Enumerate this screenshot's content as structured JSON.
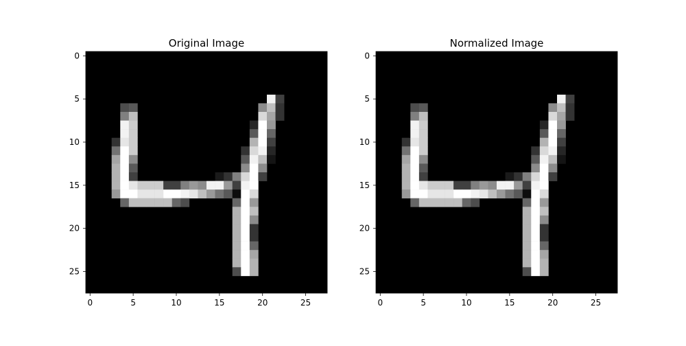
{
  "colors": {
    "background": "#ffffff",
    "axes_bg": "#000000",
    "text": "#000000"
  },
  "chart_data": [
    {
      "type": "heatmap",
      "title": "Original Image",
      "xlabel": "",
      "ylabel": "",
      "rows": 28,
      "cols": 28,
      "xlim": [
        -0.5,
        27.5
      ],
      "ylim": [
        27.5,
        -0.5
      ],
      "xticks": [
        0,
        5,
        10,
        15,
        20,
        25
      ],
      "yticks": [
        0,
        5,
        10,
        15,
        20,
        25
      ],
      "colormap": "gray",
      "vmin": 0,
      "vmax": 1,
      "grid": false,
      "pixels": [
        [
          5,
          21,
          0.95
        ],
        [
          5,
          22,
          0.25
        ],
        [
          6,
          4,
          0.3
        ],
        [
          6,
          5,
          0.35
        ],
        [
          6,
          20,
          0.55
        ],
        [
          6,
          21,
          0.75
        ],
        [
          6,
          22,
          0.2
        ],
        [
          7,
          4,
          0.5
        ],
        [
          7,
          5,
          0.75
        ],
        [
          7,
          20,
          0.85
        ],
        [
          7,
          21,
          0.65
        ],
        [
          7,
          22,
          0.2
        ],
        [
          8,
          4,
          0.95
        ],
        [
          8,
          5,
          0.8
        ],
        [
          8,
          19,
          0.15
        ],
        [
          8,
          20,
          1.0
        ],
        [
          8,
          21,
          0.6
        ],
        [
          9,
          4,
          0.95
        ],
        [
          9,
          5,
          0.8
        ],
        [
          9,
          19,
          0.35
        ],
        [
          9,
          20,
          1.0
        ],
        [
          9,
          21,
          0.4
        ],
        [
          10,
          3,
          0.2
        ],
        [
          10,
          4,
          0.9
        ],
        [
          10,
          5,
          0.8
        ],
        [
          10,
          19,
          0.7
        ],
        [
          10,
          20,
          1.0
        ],
        [
          10,
          21,
          0.25
        ],
        [
          11,
          3,
          0.45
        ],
        [
          11,
          4,
          1.0
        ],
        [
          11,
          5,
          0.8
        ],
        [
          11,
          18,
          0.2
        ],
        [
          11,
          19,
          0.85
        ],
        [
          11,
          20,
          0.95
        ],
        [
          11,
          21,
          0.15
        ],
        [
          12,
          3,
          0.65
        ],
        [
          12,
          4,
          1.0
        ],
        [
          12,
          5,
          0.55
        ],
        [
          12,
          18,
          0.35
        ],
        [
          12,
          19,
          0.95
        ],
        [
          12,
          20,
          0.75
        ],
        [
          12,
          21,
          0.08
        ],
        [
          13,
          3,
          0.7
        ],
        [
          13,
          4,
          1.0
        ],
        [
          13,
          5,
          0.35
        ],
        [
          13,
          18,
          0.55
        ],
        [
          13,
          19,
          1.0
        ],
        [
          13,
          20,
          0.55
        ],
        [
          14,
          3,
          0.7
        ],
        [
          14,
          4,
          1.0
        ],
        [
          14,
          5,
          0.25
        ],
        [
          14,
          15,
          0.1
        ],
        [
          14,
          16,
          0.2
        ],
        [
          14,
          17,
          0.5
        ],
        [
          14,
          18,
          0.85
        ],
        [
          14,
          19,
          1.0
        ],
        [
          14,
          20,
          0.25
        ],
        [
          15,
          3,
          0.7
        ],
        [
          15,
          4,
          1.0
        ],
        [
          15,
          5,
          0.9
        ],
        [
          15,
          6,
          0.8
        ],
        [
          15,
          7,
          0.8
        ],
        [
          15,
          8,
          0.8
        ],
        [
          15,
          9,
          0.25
        ],
        [
          15,
          10,
          0.25
        ],
        [
          15,
          11,
          0.5
        ],
        [
          15,
          12,
          0.6
        ],
        [
          15,
          13,
          0.55
        ],
        [
          15,
          14,
          0.95
        ],
        [
          15,
          15,
          0.95
        ],
        [
          15,
          16,
          0.6
        ],
        [
          15,
          17,
          0.25
        ],
        [
          15,
          18,
          0.95
        ],
        [
          15,
          19,
          1.0
        ],
        [
          16,
          3,
          0.6
        ],
        [
          16,
          4,
          1.0
        ],
        [
          16,
          5,
          1.0
        ],
        [
          16,
          6,
          0.9
        ],
        [
          16,
          7,
          0.9
        ],
        [
          16,
          8,
          0.9
        ],
        [
          16,
          9,
          1.0
        ],
        [
          16,
          10,
          1.0
        ],
        [
          16,
          11,
          0.95
        ],
        [
          16,
          12,
          0.9
        ],
        [
          16,
          13,
          0.75
        ],
        [
          16,
          14,
          0.6
        ],
        [
          16,
          15,
          0.45
        ],
        [
          16,
          16,
          0.35
        ],
        [
          16,
          17,
          0.05
        ],
        [
          16,
          18,
          1.0
        ],
        [
          16,
          19,
          0.85
        ],
        [
          17,
          4,
          0.4
        ],
        [
          17,
          5,
          0.75
        ],
        [
          17,
          6,
          0.75
        ],
        [
          17,
          7,
          0.75
        ],
        [
          17,
          8,
          0.75
        ],
        [
          17,
          9,
          0.75
        ],
        [
          17,
          10,
          0.4
        ],
        [
          17,
          11,
          0.3
        ],
        [
          17,
          17,
          0.4
        ],
        [
          17,
          18,
          1.0
        ],
        [
          17,
          19,
          0.6
        ],
        [
          18,
          17,
          0.7
        ],
        [
          18,
          18,
          1.0
        ],
        [
          18,
          19,
          0.75
        ],
        [
          19,
          17,
          0.7
        ],
        [
          19,
          18,
          1.0
        ],
        [
          19,
          19,
          0.55
        ],
        [
          20,
          17,
          0.7
        ],
        [
          20,
          18,
          1.0
        ],
        [
          20,
          19,
          0.2
        ],
        [
          21,
          17,
          0.7
        ],
        [
          21,
          18,
          1.0
        ],
        [
          21,
          19,
          0.2
        ],
        [
          22,
          17,
          0.7
        ],
        [
          22,
          18,
          1.0
        ],
        [
          22,
          19,
          0.4
        ],
        [
          23,
          17,
          0.7
        ],
        [
          23,
          18,
          1.0
        ],
        [
          23,
          19,
          0.65
        ],
        [
          24,
          17,
          0.7
        ],
        [
          24,
          18,
          1.0
        ],
        [
          24,
          19,
          0.7
        ],
        [
          25,
          17,
          0.3
        ],
        [
          25,
          18,
          1.0
        ],
        [
          25,
          19,
          0.7
        ]
      ]
    },
    {
      "type": "heatmap",
      "title": "Normalized Image",
      "xlabel": "",
      "ylabel": "",
      "rows": 28,
      "cols": 28,
      "xlim": [
        -0.5,
        27.5
      ],
      "ylim": [
        27.5,
        -0.5
      ],
      "xticks": [
        0,
        5,
        10,
        15,
        20,
        25
      ],
      "yticks": [
        0,
        5,
        10,
        15,
        20,
        25
      ],
      "colormap": "gray",
      "vmin": 0,
      "vmax": 1,
      "grid": false,
      "pixels": [
        [
          5,
          21,
          0.95
        ],
        [
          5,
          22,
          0.25
        ],
        [
          6,
          4,
          0.3
        ],
        [
          6,
          5,
          0.35
        ],
        [
          6,
          20,
          0.55
        ],
        [
          6,
          21,
          0.75
        ],
        [
          6,
          22,
          0.2
        ],
        [
          7,
          4,
          0.5
        ],
        [
          7,
          5,
          0.75
        ],
        [
          7,
          20,
          0.85
        ],
        [
          7,
          21,
          0.65
        ],
        [
          7,
          22,
          0.2
        ],
        [
          8,
          4,
          0.95
        ],
        [
          8,
          5,
          0.8
        ],
        [
          8,
          19,
          0.15
        ],
        [
          8,
          20,
          1.0
        ],
        [
          8,
          21,
          0.6
        ],
        [
          9,
          4,
          0.95
        ],
        [
          9,
          5,
          0.8
        ],
        [
          9,
          19,
          0.35
        ],
        [
          9,
          20,
          1.0
        ],
        [
          9,
          21,
          0.4
        ],
        [
          10,
          3,
          0.2
        ],
        [
          10,
          4,
          0.9
        ],
        [
          10,
          5,
          0.8
        ],
        [
          10,
          19,
          0.7
        ],
        [
          10,
          20,
          1.0
        ],
        [
          10,
          21,
          0.25
        ],
        [
          11,
          3,
          0.45
        ],
        [
          11,
          4,
          1.0
        ],
        [
          11,
          5,
          0.8
        ],
        [
          11,
          18,
          0.2
        ],
        [
          11,
          19,
          0.85
        ],
        [
          11,
          20,
          0.95
        ],
        [
          11,
          21,
          0.15
        ],
        [
          12,
          3,
          0.65
        ],
        [
          12,
          4,
          1.0
        ],
        [
          12,
          5,
          0.55
        ],
        [
          12,
          18,
          0.35
        ],
        [
          12,
          19,
          0.95
        ],
        [
          12,
          20,
          0.75
        ],
        [
          12,
          21,
          0.08
        ],
        [
          13,
          3,
          0.7
        ],
        [
          13,
          4,
          1.0
        ],
        [
          13,
          5,
          0.35
        ],
        [
          13,
          18,
          0.55
        ],
        [
          13,
          19,
          1.0
        ],
        [
          13,
          20,
          0.55
        ],
        [
          14,
          3,
          0.7
        ],
        [
          14,
          4,
          1.0
        ],
        [
          14,
          5,
          0.25
        ],
        [
          14,
          15,
          0.1
        ],
        [
          14,
          16,
          0.2
        ],
        [
          14,
          17,
          0.5
        ],
        [
          14,
          18,
          0.85
        ],
        [
          14,
          19,
          1.0
        ],
        [
          14,
          20,
          0.25
        ],
        [
          15,
          3,
          0.7
        ],
        [
          15,
          4,
          1.0
        ],
        [
          15,
          5,
          0.9
        ],
        [
          15,
          6,
          0.8
        ],
        [
          15,
          7,
          0.8
        ],
        [
          15,
          8,
          0.8
        ],
        [
          15,
          9,
          0.25
        ],
        [
          15,
          10,
          0.25
        ],
        [
          15,
          11,
          0.5
        ],
        [
          15,
          12,
          0.6
        ],
        [
          15,
          13,
          0.55
        ],
        [
          15,
          14,
          0.95
        ],
        [
          15,
          15,
          0.95
        ],
        [
          15,
          16,
          0.6
        ],
        [
          15,
          17,
          0.25
        ],
        [
          15,
          18,
          0.95
        ],
        [
          15,
          19,
          1.0
        ],
        [
          16,
          3,
          0.6
        ],
        [
          16,
          4,
          1.0
        ],
        [
          16,
          5,
          1.0
        ],
        [
          16,
          6,
          0.9
        ],
        [
          16,
          7,
          0.9
        ],
        [
          16,
          8,
          0.9
        ],
        [
          16,
          9,
          1.0
        ],
        [
          16,
          10,
          1.0
        ],
        [
          16,
          11,
          0.95
        ],
        [
          16,
          12,
          0.9
        ],
        [
          16,
          13,
          0.75
        ],
        [
          16,
          14,
          0.6
        ],
        [
          16,
          15,
          0.45
        ],
        [
          16,
          16,
          0.35
        ],
        [
          16,
          17,
          0.05
        ],
        [
          16,
          18,
          1.0
        ],
        [
          16,
          19,
          0.85
        ],
        [
          17,
          4,
          0.4
        ],
        [
          17,
          5,
          0.75
        ],
        [
          17,
          6,
          0.75
        ],
        [
          17,
          7,
          0.75
        ],
        [
          17,
          8,
          0.75
        ],
        [
          17,
          9,
          0.75
        ],
        [
          17,
          10,
          0.4
        ],
        [
          17,
          11,
          0.3
        ],
        [
          17,
          17,
          0.4
        ],
        [
          17,
          18,
          1.0
        ],
        [
          17,
          19,
          0.6
        ],
        [
          18,
          17,
          0.7
        ],
        [
          18,
          18,
          1.0
        ],
        [
          18,
          19,
          0.75
        ],
        [
          19,
          17,
          0.7
        ],
        [
          19,
          18,
          1.0
        ],
        [
          19,
          19,
          0.55
        ],
        [
          20,
          17,
          0.7
        ],
        [
          20,
          18,
          1.0
        ],
        [
          20,
          19,
          0.2
        ],
        [
          21,
          17,
          0.7
        ],
        [
          21,
          18,
          1.0
        ],
        [
          21,
          19,
          0.2
        ],
        [
          22,
          17,
          0.7
        ],
        [
          22,
          18,
          1.0
        ],
        [
          22,
          19,
          0.4
        ],
        [
          23,
          17,
          0.7
        ],
        [
          23,
          18,
          1.0
        ],
        [
          23,
          19,
          0.65
        ],
        [
          24,
          17,
          0.7
        ],
        [
          24,
          18,
          1.0
        ],
        [
          24,
          19,
          0.7
        ],
        [
          25,
          17,
          0.3
        ],
        [
          25,
          18,
          1.0
        ],
        [
          25,
          19,
          0.7
        ]
      ]
    }
  ]
}
